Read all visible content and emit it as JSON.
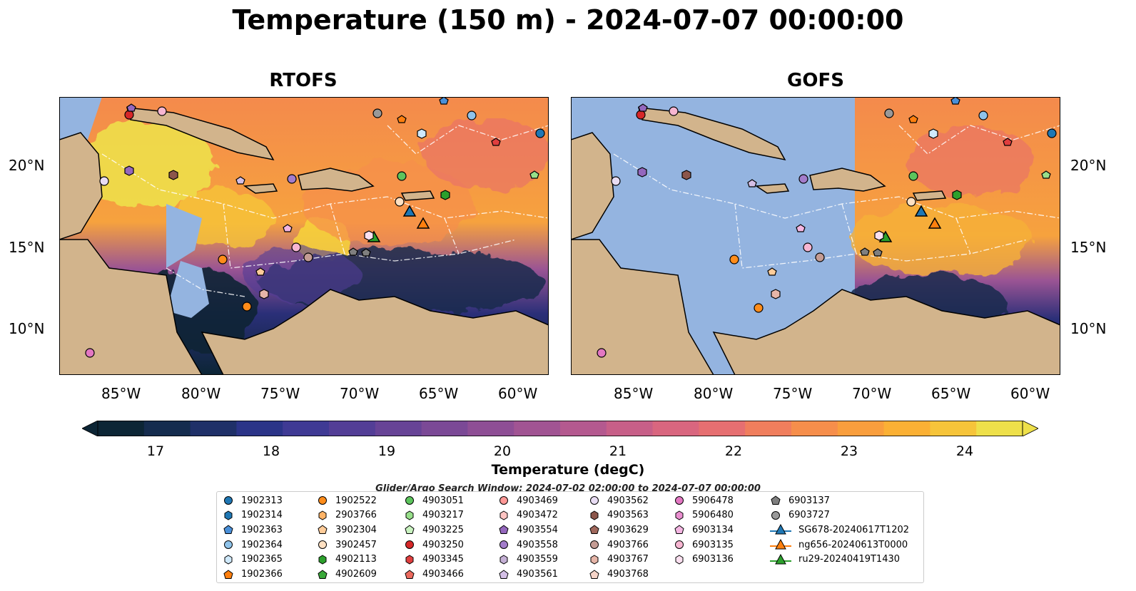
{
  "title": "Temperature (150 m) - 2024-07-07 00:00:00",
  "panels": [
    {
      "title": "RTOFS"
    },
    {
      "title": "GOFS"
    }
  ],
  "axes": {
    "lon_labels": [
      "85°W",
      "80°W",
      "75°W",
      "70°W",
      "65°W",
      "60°W"
    ],
    "lat_labels": [
      "20°N",
      "15°N",
      "10°N"
    ],
    "lon_range": [
      -89,
      -58
    ],
    "lat_range": [
      7,
      24.5
    ]
  },
  "colors": {
    "land": "#d2b48c",
    "ocean_shallow": "#94b4e0",
    "gofs_masked": "#94b4e0"
  },
  "colorbar": {
    "label": "Temperature (degC)",
    "ticks": [
      "17",
      "18",
      "19",
      "20",
      "21",
      "22",
      "23",
      "24"
    ],
    "range": [
      16.5,
      24.5
    ],
    "colors": [
      "#0c2535",
      "#152c4e",
      "#1f3068",
      "#2b3488",
      "#3f3a94",
      "#533e96",
      "#674396",
      "#7b4996",
      "#8e4e95",
      "#a15493",
      "#b4598f",
      "#c75f88",
      "#d9667f",
      "#e66f71",
      "#f07e5d",
      "#f68e4b",
      "#f99e3d",
      "#fbb034",
      "#f6c43a",
      "#eee04a"
    ]
  },
  "search_window": "Glider/Argo Search Window: 2024-07-02 02:00:00 to 2024-07-07 00:00:00",
  "legend": {
    "entries": [
      {
        "label": "1902313",
        "marker": "circle",
        "color": "#1f77b4"
      },
      {
        "label": "1902314",
        "marker": "hexagon",
        "color": "#1f77b4"
      },
      {
        "label": "1902363",
        "marker": "pentagon",
        "color": "#4a90d9"
      },
      {
        "label": "1902364",
        "marker": "circle",
        "color": "#8fc3ea"
      },
      {
        "label": "1902365",
        "marker": "hexagon",
        "color": "#cfe9fb"
      },
      {
        "label": "1902366",
        "marker": "pentagon",
        "color": "#ff7f0e"
      },
      {
        "label": "1902522",
        "marker": "circle",
        "color": "#ff8c1a"
      },
      {
        "label": "2903766",
        "marker": "hexagon",
        "color": "#ffb366"
      },
      {
        "label": "3902304",
        "marker": "pentagon",
        "color": "#ffcc99"
      },
      {
        "label": "3902457",
        "marker": "circle",
        "color": "#ffe0c2"
      },
      {
        "label": "4902113",
        "marker": "hexagon",
        "color": "#2ca02c"
      },
      {
        "label": "4902609",
        "marker": "pentagon",
        "color": "#3aa83a"
      },
      {
        "label": "4903051",
        "marker": "circle",
        "color": "#5cc45c"
      },
      {
        "label": "4903217",
        "marker": "hexagon",
        "color": "#98df8a"
      },
      {
        "label": "4903225",
        "marker": "pentagon",
        "color": "#c9f2c0"
      },
      {
        "label": "4903250",
        "marker": "circle",
        "color": "#d62728"
      },
      {
        "label": "4903345",
        "marker": "hexagon",
        "color": "#e03e3e"
      },
      {
        "label": "4903466",
        "marker": "pentagon",
        "color": "#ec6a5e"
      },
      {
        "label": "4903469",
        "marker": "circle",
        "color": "#ff9896"
      },
      {
        "label": "4903472",
        "marker": "hexagon",
        "color": "#ffc4c2"
      },
      {
        "label": "4903554",
        "marker": "pentagon",
        "color": "#9467bd"
      },
      {
        "label": "4903558",
        "marker": "circle",
        "color": "#a37ccb"
      },
      {
        "label": "4903559",
        "marker": "hexagon",
        "color": "#c5b0d5"
      },
      {
        "label": "4903561",
        "marker": "pentagon",
        "color": "#d4bfe6"
      },
      {
        "label": "4903562",
        "marker": "circle",
        "color": "#e8dcf3"
      },
      {
        "label": "4903563",
        "marker": "hexagon",
        "color": "#8c564b"
      },
      {
        "label": "4903629",
        "marker": "pentagon",
        "color": "#a0685c"
      },
      {
        "label": "4903766",
        "marker": "circle",
        "color": "#c49c94"
      },
      {
        "label": "4903767",
        "marker": "hexagon",
        "color": "#e6b5a8"
      },
      {
        "label": "4903768",
        "marker": "pentagon",
        "color": "#f5d4c8"
      },
      {
        "label": "5906478",
        "marker": "circle",
        "color": "#e377c2"
      },
      {
        "label": "5906480",
        "marker": "hexagon",
        "color": "#ea8fd0"
      },
      {
        "label": "6903134",
        "marker": "pentagon",
        "color": "#f4b6e2"
      },
      {
        "label": "6903135",
        "marker": "circle",
        "color": "#f7b6d2"
      },
      {
        "label": "6903136",
        "marker": "hexagon",
        "color": "#fbe0f0"
      },
      {
        "label": "6903137",
        "marker": "pentagon",
        "color": "#7f7f7f"
      },
      {
        "label": "6903727",
        "marker": "circle",
        "color": "#999999"
      },
      {
        "label": "SG678-20240617T1202",
        "marker": "triangle-line",
        "color": "#1f77b4"
      },
      {
        "label": "ng656-20240613T0000",
        "marker": "triangle-line",
        "color": "#ff7f0e"
      },
      {
        "label": "ru29-20240419T1430",
        "marker": "triangle-line",
        "color": "#2ca02c"
      }
    ]
  }
}
